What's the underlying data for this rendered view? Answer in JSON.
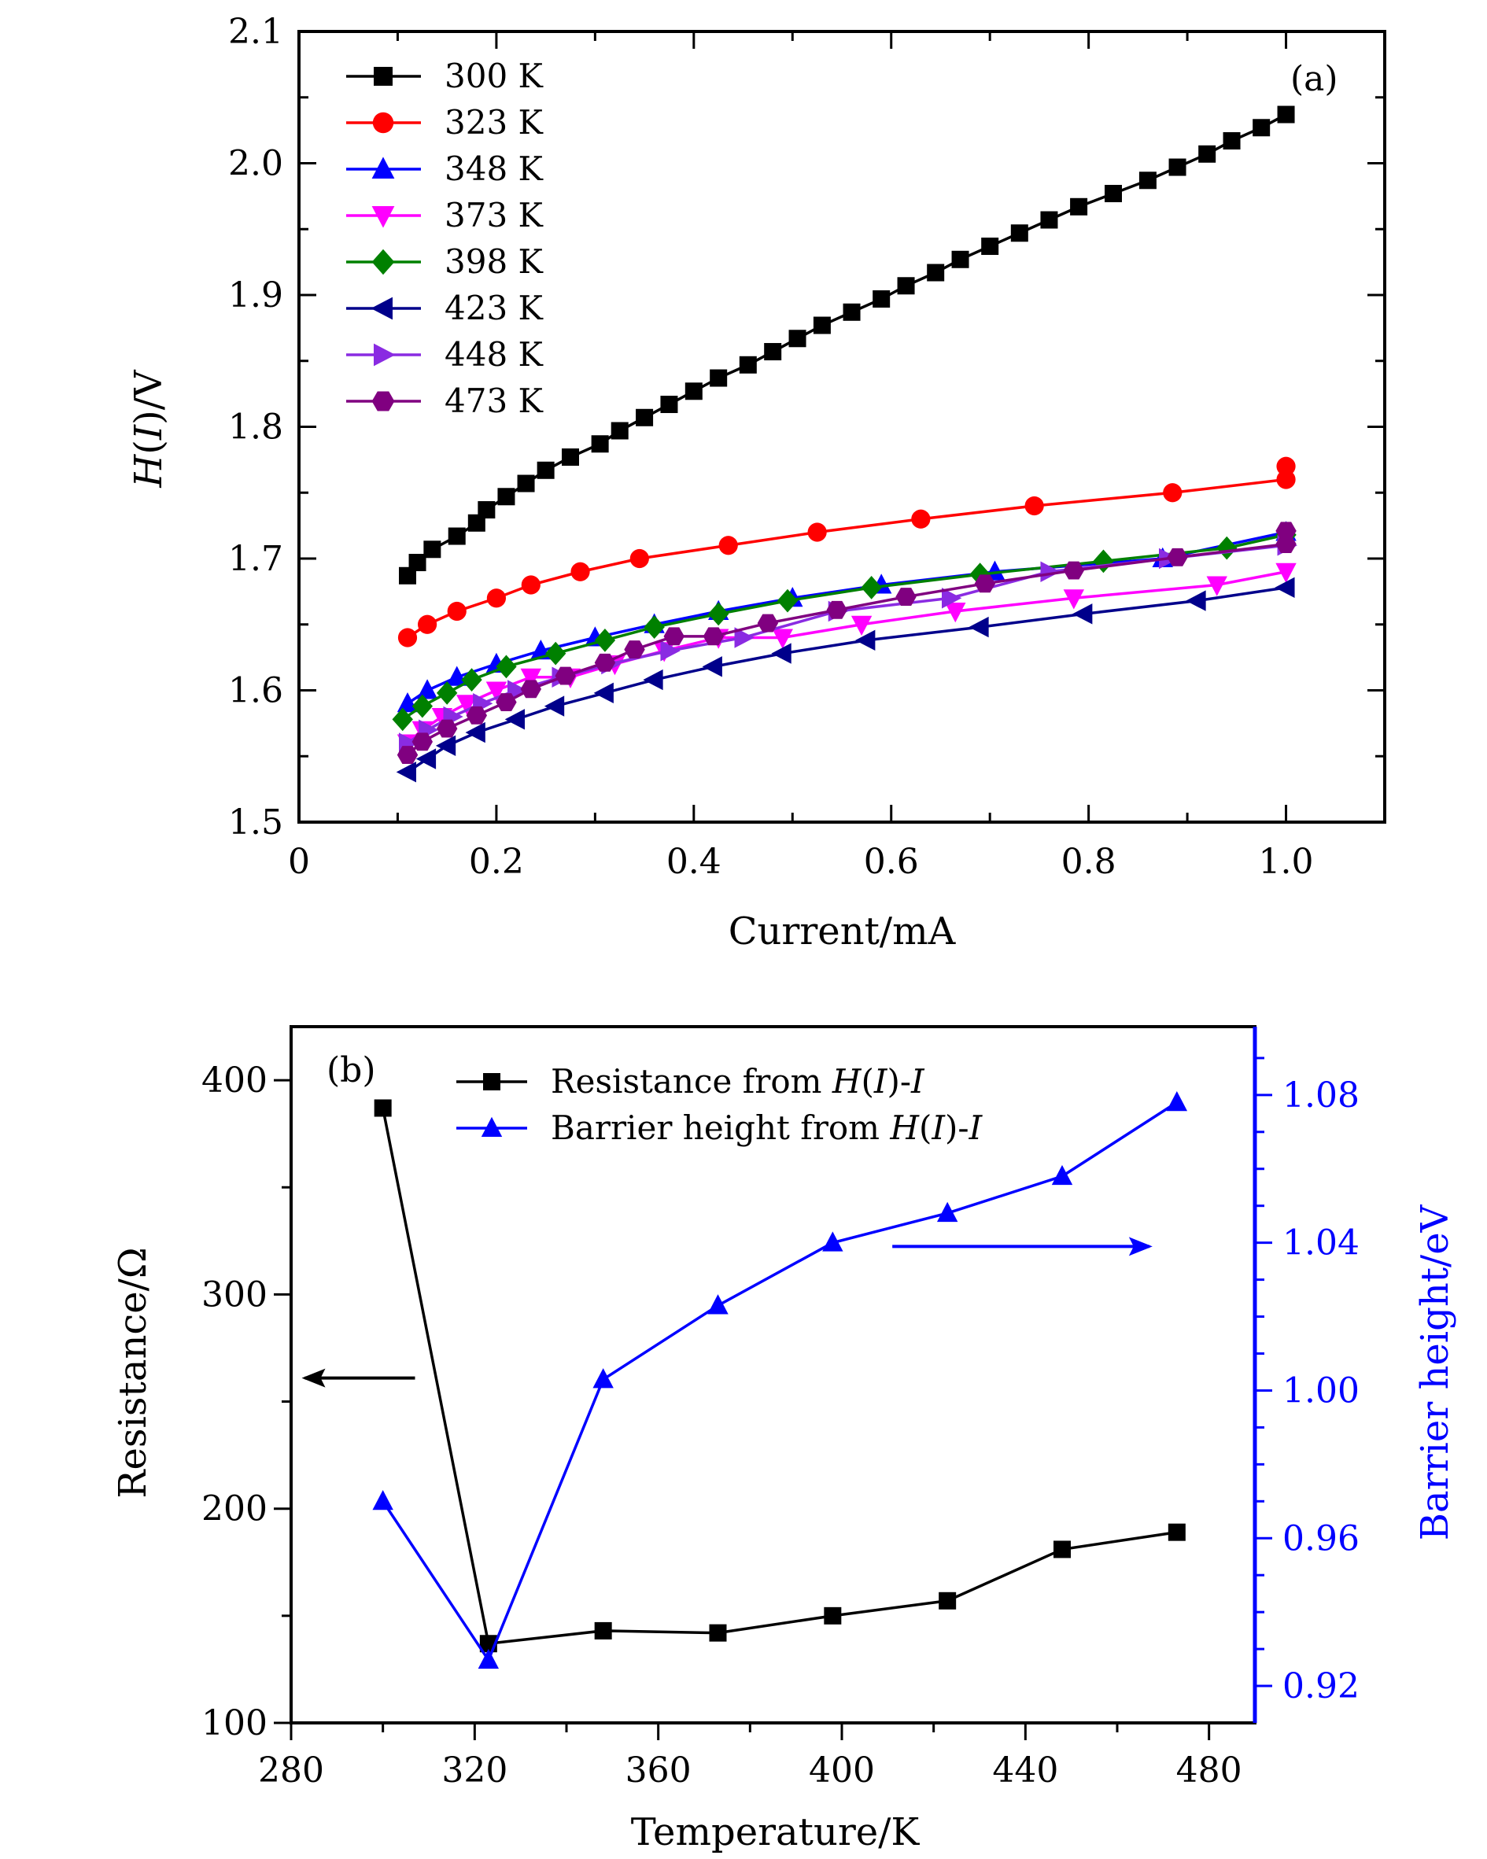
{
  "chart_data": [
    {
      "type": "line",
      "panel_label": "(a)",
      "xlabel": "Current/mA",
      "ylabel_italic": "H",
      "ylabel_paren_open": "(",
      "ylabel_italic2": "I",
      "ylabel_rest": ")/V",
      "xlim": [
        0,
        1.1
      ],
      "ylim": [
        1.5,
        2.1
      ],
      "xticks": [
        "0",
        "0.2",
        "0.4",
        "0.6",
        "0.8",
        "1.0"
      ],
      "yticks": [
        "1.5",
        "1.6",
        "1.7",
        "1.8",
        "1.9",
        "2.0",
        "2.1"
      ],
      "legend_position": "top-left",
      "series": [
        {
          "name": "300 K",
          "color": "#000000",
          "marker": "square",
          "x": [
            0.11,
            0.12,
            0.135,
            0.16,
            0.18,
            0.19,
            0.21,
            0.23,
            0.25,
            0.275,
            0.305,
            0.325,
            0.35,
            0.375,
            0.4,
            0.425,
            0.455,
            0.48,
            0.505,
            0.53,
            0.56,
            0.59,
            0.615,
            0.645,
            0.67,
            0.7,
            0.73,
            0.76,
            0.79,
            0.825,
            0.86,
            0.89,
            0.92,
            0.945,
            0.975,
            1.0
          ],
          "y": [
            1.687,
            1.697,
            1.707,
            1.717,
            1.727,
            1.737,
            1.747,
            1.757,
            1.767,
            1.777,
            1.787,
            1.797,
            1.807,
            1.817,
            1.827,
            1.837,
            1.847,
            1.857,
            1.867,
            1.877,
            1.887,
            1.897,
            1.907,
            1.917,
            1.927,
            1.937,
            1.947,
            1.957,
            1.967,
            1.977,
            1.987,
            1.997,
            2.007,
            2.017,
            2.027,
            2.037
          ]
        },
        {
          "name": "323 K",
          "color": "#ff0000",
          "marker": "circle",
          "x": [
            0.11,
            0.13,
            0.16,
            0.2,
            0.235,
            0.285,
            0.345,
            0.435,
            0.525,
            0.63,
            0.745,
            0.885,
            1.0,
            1.0
          ],
          "y": [
            1.64,
            1.65,
            1.66,
            1.67,
            1.68,
            1.69,
            1.7,
            1.71,
            1.72,
            1.73,
            1.74,
            1.75,
            1.76,
            1.77
          ]
        },
        {
          "name": "348 K",
          "color": "#0000ff",
          "marker": "triangle-up",
          "x": [
            0.11,
            0.13,
            0.16,
            0.2,
            0.245,
            0.3,
            0.36,
            0.425,
            0.5,
            0.59,
            0.705,
            0.875,
            1.0
          ],
          "y": [
            1.59,
            1.6,
            1.61,
            1.62,
            1.63,
            1.64,
            1.65,
            1.66,
            1.67,
            1.68,
            1.69,
            1.7,
            1.72
          ]
        },
        {
          "name": "373 K",
          "color": "#ff00ff",
          "marker": "triangle-down",
          "x": [
            0.11,
            0.125,
            0.145,
            0.17,
            0.2,
            0.235,
            0.275,
            0.32,
            0.37,
            0.425,
            0.49,
            0.57,
            0.665,
            0.785,
            0.93,
            1.0
          ],
          "y": [
            1.56,
            1.57,
            1.58,
            1.59,
            1.6,
            1.61,
            1.61,
            1.62,
            1.63,
            1.64,
            1.64,
            1.65,
            1.66,
            1.67,
            1.68,
            1.69
          ]
        },
        {
          "name": "398 K",
          "color": "#008000",
          "marker": "diamond",
          "x": [
            0.105,
            0.125,
            0.15,
            0.175,
            0.21,
            0.26,
            0.31,
            0.36,
            0.425,
            0.495,
            0.58,
            0.69,
            0.815,
            0.94,
            1.0
          ],
          "y": [
            1.578,
            1.588,
            1.598,
            1.608,
            1.618,
            1.628,
            1.638,
            1.648,
            1.658,
            1.668,
            1.678,
            1.688,
            1.698,
            1.708,
            1.718
          ]
        },
        {
          "name": "423 K",
          "color": "#00008b",
          "marker": "triangle-left",
          "x": [
            0.11,
            0.13,
            0.15,
            0.18,
            0.22,
            0.26,
            0.31,
            0.36,
            0.42,
            0.49,
            0.575,
            0.69,
            0.795,
            0.91,
            1.0
          ],
          "y": [
            1.538,
            1.548,
            1.558,
            1.568,
            1.578,
            1.588,
            1.598,
            1.608,
            1.618,
            1.628,
            1.638,
            1.648,
            1.658,
            1.668,
            1.678
          ]
        },
        {
          "name": "448 K",
          "color": "#8a2be2",
          "marker": "triangle-right",
          "x": [
            0.11,
            0.13,
            0.155,
            0.185,
            0.22,
            0.265,
            0.315,
            0.375,
            0.45,
            0.545,
            0.66,
            0.76,
            0.88,
            1.0
          ],
          "y": [
            1.56,
            1.57,
            1.58,
            1.59,
            1.6,
            1.61,
            1.62,
            1.63,
            1.64,
            1.66,
            1.67,
            1.69,
            1.7,
            1.71
          ]
        },
        {
          "name": "473 K",
          "color": "#800080",
          "marker": "hexagon",
          "x": [
            0.11,
            0.125,
            0.15,
            0.18,
            0.21,
            0.235,
            0.27,
            0.31,
            0.34,
            0.38,
            0.42,
            0.475,
            0.545,
            0.615,
            0.695,
            0.785,
            0.89,
            1.0,
            1.0
          ],
          "y": [
            1.551,
            1.561,
            1.571,
            1.581,
            1.591,
            1.601,
            1.611,
            1.621,
            1.631,
            1.641,
            1.641,
            1.651,
            1.661,
            1.671,
            1.681,
            1.691,
            1.701,
            1.711,
            1.721
          ]
        }
      ]
    },
    {
      "type": "line",
      "panel_label": "(b)",
      "xlabel": "Temperature/K",
      "ylabel_left": "Resistance/Ω",
      "ylabel_right": "Barrier height/eV",
      "xlim": [
        280,
        490
      ],
      "ylim_left": [
        100,
        425
      ],
      "ylim_right": [
        0.91,
        1.0985
      ],
      "xticks": [
        "280",
        "320",
        "360",
        "400",
        "440",
        "480"
      ],
      "yticks_left": [
        "100",
        "200",
        "300",
        "400"
      ],
      "yticks_right": [
        "0.92",
        "0.96",
        "1.00",
        "1.04",
        "1.08"
      ],
      "legend_position": "top-center",
      "series": [
        {
          "name_prefix": "Resistance from ",
          "name_italic1": "H",
          "name_mid": "(",
          "name_italic2": "I",
          "name_mid2": ")-",
          "name_italic3": "I",
          "axis": "left",
          "color": "#000000",
          "marker": "square",
          "x": [
            300,
            323,
            348,
            373,
            398,
            423,
            448,
            473
          ],
          "y": [
            387,
            137,
            143,
            142,
            150,
            157,
            181,
            189
          ]
        },
        {
          "name_prefix": "Barrier height from ",
          "name_italic1": "H",
          "name_mid": "(",
          "name_italic2": "I",
          "name_mid2": ")-",
          "name_italic3": "I",
          "axis": "right",
          "color": "#0000ff",
          "marker": "triangle-up",
          "x": [
            300,
            323,
            348,
            373,
            398,
            423,
            448,
            473
          ],
          "y": [
            0.97,
            0.927,
            1.003,
            1.023,
            1.04,
            1.048,
            1.058,
            1.078
          ]
        }
      ],
      "annotations": [
        {
          "type": "arrow",
          "direction": "left",
          "color": "#000000",
          "from": [
            307,
            261
          ],
          "to": [
            283,
            261
          ],
          "axis": "left"
        },
        {
          "type": "arrow",
          "direction": "right",
          "color": "#0000ff",
          "from": [
            411,
            1.039
          ],
          "to": [
            467,
            1.039
          ],
          "axis": "right"
        }
      ]
    }
  ]
}
